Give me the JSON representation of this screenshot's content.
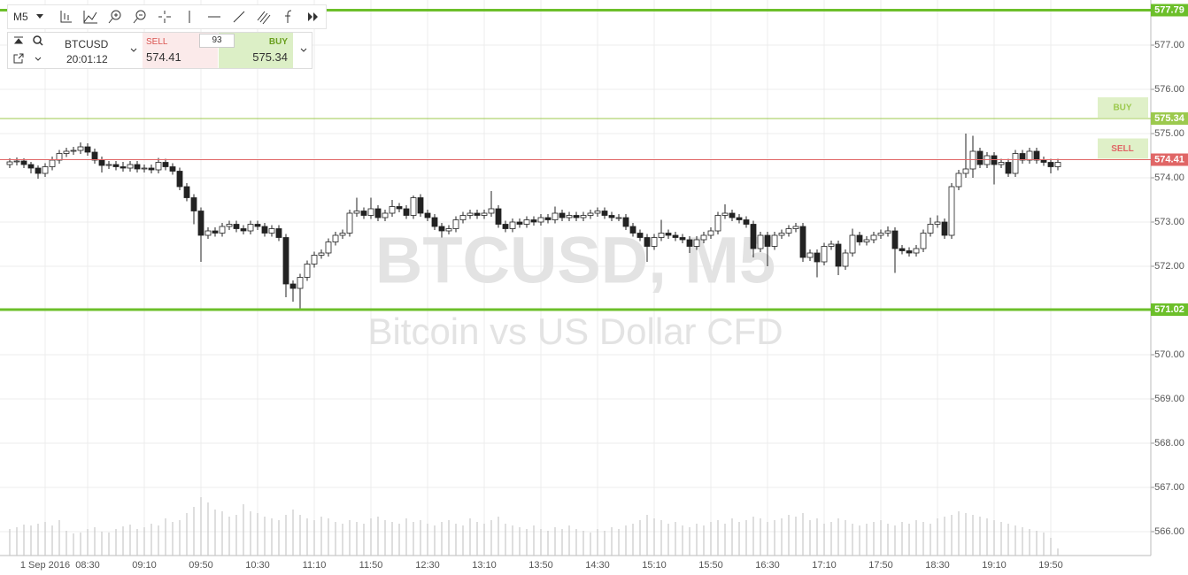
{
  "toolbar": {
    "timeframe": "M5"
  },
  "ticker": {
    "symbol": "BTCUSD",
    "time": "20:01:12",
    "sell_label": "SELL",
    "sell_price": "574.41",
    "spread": "93",
    "buy_label": "BUY",
    "buy_price": "575.34"
  },
  "chart_data": {
    "type": "candlestick",
    "watermark": "BTCUSD, M5",
    "watermark_subtitle": "Bitcoin vs US Dollar CFD",
    "x": [
      "07:35",
      "07:40",
      "07:45",
      "07:50",
      "07:55",
      "08:00",
      "08:05",
      "08:10",
      "08:15",
      "08:20",
      "08:25",
      "08:30",
      "08:35",
      "08:40",
      "08:45",
      "08:50",
      "08:55",
      "09:00",
      "09:05",
      "09:10",
      "09:15",
      "09:20",
      "09:25",
      "09:30",
      "09:35",
      "09:40",
      "09:45",
      "09:50",
      "09:55",
      "10:00",
      "10:05",
      "10:10",
      "10:15",
      "10:20",
      "10:25",
      "10:30",
      "10:35",
      "10:40",
      "10:45",
      "10:50",
      "10:55",
      "11:00",
      "11:05",
      "11:10",
      "11:15",
      "11:20",
      "11:25",
      "11:30",
      "11:35",
      "11:40",
      "11:45",
      "11:50",
      "11:55",
      "12:00",
      "12:05",
      "12:10",
      "12:15",
      "12:20",
      "12:25",
      "12:30",
      "12:35",
      "12:40",
      "12:45",
      "12:50",
      "12:55",
      "13:00",
      "13:05",
      "13:10",
      "13:15",
      "13:20",
      "13:25",
      "13:30",
      "13:35",
      "13:40",
      "13:45",
      "13:50",
      "13:55",
      "14:00",
      "14:05",
      "14:10",
      "14:15",
      "14:20",
      "14:25",
      "14:30",
      "14:35",
      "14:40",
      "14:45",
      "14:50",
      "14:55",
      "15:00",
      "15:05",
      "15:10",
      "15:15",
      "15:20",
      "15:25",
      "15:30",
      "15:35",
      "15:40",
      "15:45",
      "15:50",
      "15:55",
      "16:00",
      "16:05",
      "16:10",
      "16:15",
      "16:20",
      "16:25",
      "16:30",
      "16:35",
      "16:40",
      "16:45",
      "16:50",
      "16:55",
      "17:00",
      "17:05",
      "17:10",
      "17:15",
      "17:20",
      "17:25",
      "17:30",
      "17:35",
      "17:40",
      "17:45",
      "17:50",
      "17:55",
      "18:00",
      "18:05",
      "18:10",
      "18:15",
      "18:20",
      "18:25",
      "18:30",
      "18:35",
      "18:40",
      "18:45",
      "18:50",
      "18:55",
      "19:00",
      "19:05",
      "19:10",
      "19:15",
      "19:20",
      "19:25",
      "19:30",
      "19:35",
      "19:40",
      "19:45",
      "19:50",
      "19:55"
    ],
    "ohlc": [
      [
        574.3,
        574.44,
        574.22,
        574.36
      ],
      [
        574.36,
        574.46,
        574.28,
        574.38
      ],
      [
        574.38,
        574.44,
        574.22,
        574.3
      ],
      [
        574.3,
        574.36,
        574.1,
        574.22
      ],
      [
        574.22,
        574.28,
        573.98,
        574.1
      ],
      [
        574.1,
        574.33,
        574.02,
        574.25
      ],
      [
        574.25,
        574.48,
        574.17,
        574.4
      ],
      [
        574.4,
        574.63,
        574.32,
        574.55
      ],
      [
        574.55,
        574.68,
        574.47,
        574.6
      ],
      [
        574.6,
        574.7,
        574.52,
        574.62
      ],
      [
        574.62,
        574.8,
        574.54,
        574.7
      ],
      [
        574.7,
        574.78,
        574.5,
        574.58
      ],
      [
        574.58,
        574.66,
        574.32,
        574.4
      ],
      [
        574.4,
        574.48,
        574.12,
        574.28
      ],
      [
        574.28,
        574.38,
        574.2,
        574.3
      ],
      [
        574.3,
        574.38,
        574.17,
        574.25
      ],
      [
        574.25,
        574.36,
        574.14,
        574.22
      ],
      [
        574.22,
        574.38,
        574.14,
        574.3
      ],
      [
        574.3,
        574.38,
        574.12,
        574.2
      ],
      [
        574.2,
        574.3,
        574.12,
        574.22
      ],
      [
        574.22,
        574.3,
        574.1,
        574.18
      ],
      [
        574.18,
        574.45,
        574.1,
        574.35
      ],
      [
        574.35,
        574.43,
        574.17,
        574.25
      ],
      [
        574.25,
        574.33,
        574.07,
        574.15
      ],
      [
        574.15,
        574.23,
        573.72,
        573.8
      ],
      [
        573.8,
        573.88,
        573.47,
        573.55
      ],
      [
        573.55,
        573.63,
        572.95,
        573.25
      ],
      [
        573.25,
        573.33,
        572.1,
        572.7
      ],
      [
        572.7,
        572.88,
        572.62,
        572.8
      ],
      [
        572.8,
        572.88,
        572.67,
        572.75
      ],
      [
        572.75,
        572.98,
        572.67,
        572.9
      ],
      [
        572.9,
        573.03,
        572.82,
        572.95
      ],
      [
        572.95,
        573.03,
        572.77,
        572.85
      ],
      [
        572.85,
        572.93,
        572.72,
        572.8
      ],
      [
        572.8,
        573.03,
        572.72,
        572.95
      ],
      [
        572.95,
        573.03,
        572.82,
        572.9
      ],
      [
        572.9,
        572.98,
        572.67,
        572.75
      ],
      [
        572.75,
        572.93,
        572.67,
        572.85
      ],
      [
        572.85,
        572.93,
        572.57,
        572.65
      ],
      [
        572.65,
        572.73,
        571.3,
        571.6
      ],
      [
        571.6,
        571.68,
        571.2,
        571.5
      ],
      [
        571.5,
        571.83,
        571.02,
        571.75
      ],
      [
        571.75,
        572.13,
        571.67,
        572.05
      ],
      [
        572.05,
        572.33,
        571.97,
        572.25
      ],
      [
        572.25,
        572.38,
        572.17,
        572.3
      ],
      [
        572.3,
        572.63,
        572.22,
        572.55
      ],
      [
        572.55,
        572.78,
        572.47,
        572.7
      ],
      [
        572.7,
        572.83,
        572.62,
        572.75
      ],
      [
        572.75,
        573.28,
        572.67,
        573.2
      ],
      [
        573.2,
        573.55,
        573.12,
        573.25
      ],
      [
        573.25,
        573.33,
        573.07,
        573.15
      ],
      [
        573.15,
        573.55,
        573.07,
        573.3
      ],
      [
        573.3,
        573.38,
        573.02,
        573.1
      ],
      [
        573.1,
        573.28,
        573.02,
        573.2
      ],
      [
        573.2,
        573.5,
        573.12,
        573.35
      ],
      [
        573.35,
        573.43,
        573.22,
        573.3
      ],
      [
        573.3,
        573.38,
        573.07,
        573.15
      ],
      [
        573.15,
        573.6,
        573.07,
        573.55
      ],
      [
        573.55,
        573.63,
        573.12,
        573.2
      ],
      [
        573.2,
        573.28,
        573.02,
        573.1
      ],
      [
        573.1,
        573.18,
        572.82,
        572.9
      ],
      [
        572.9,
        572.98,
        572.65,
        572.8
      ],
      [
        572.8,
        572.93,
        572.72,
        572.85
      ],
      [
        572.85,
        573.13,
        572.77,
        573.05
      ],
      [
        573.05,
        573.23,
        572.97,
        573.15
      ],
      [
        573.15,
        573.28,
        573.07,
        573.2
      ],
      [
        573.2,
        573.28,
        573.07,
        573.15
      ],
      [
        573.15,
        573.28,
        573.07,
        573.2
      ],
      [
        573.2,
        573.7,
        573.12,
        573.3
      ],
      [
        573.3,
        573.38,
        572.87,
        572.95
      ],
      [
        572.95,
        573.03,
        572.77,
        572.85
      ],
      [
        572.85,
        573.08,
        572.77,
        573.0
      ],
      [
        573.0,
        573.08,
        572.87,
        572.95
      ],
      [
        572.95,
        573.13,
        572.87,
        573.05
      ],
      [
        573.05,
        573.13,
        572.92,
        573.0
      ],
      [
        573.0,
        573.18,
        572.92,
        573.1
      ],
      [
        573.1,
        573.18,
        572.97,
        573.05
      ],
      [
        573.05,
        573.35,
        572.97,
        573.2
      ],
      [
        573.2,
        573.28,
        573.02,
        573.1
      ],
      [
        573.1,
        573.23,
        573.02,
        573.15
      ],
      [
        573.15,
        573.23,
        573.02,
        573.1
      ],
      [
        573.1,
        573.23,
        573.02,
        573.15
      ],
      [
        573.15,
        573.28,
        573.07,
        573.2
      ],
      [
        573.2,
        573.33,
        573.12,
        573.25
      ],
      [
        573.25,
        573.33,
        573.07,
        573.15
      ],
      [
        573.15,
        573.23,
        573.02,
        573.1
      ],
      [
        573.1,
        573.18,
        573.02,
        573.1
      ],
      [
        573.1,
        573.18,
        572.82,
        572.9
      ],
      [
        572.9,
        572.98,
        572.67,
        572.75
      ],
      [
        572.75,
        572.83,
        572.57,
        572.65
      ],
      [
        572.65,
        572.73,
        572.1,
        572.45
      ],
      [
        572.45,
        572.73,
        572.37,
        572.65
      ],
      [
        572.65,
        573.05,
        572.57,
        572.75
      ],
      [
        572.75,
        572.83,
        572.62,
        572.7
      ],
      [
        572.7,
        572.78,
        572.57,
        572.65
      ],
      [
        572.65,
        572.73,
        572.52,
        572.6
      ],
      [
        572.6,
        572.68,
        572.3,
        572.45
      ],
      [
        572.45,
        572.68,
        572.37,
        572.6
      ],
      [
        572.6,
        572.78,
        572.52,
        572.7
      ],
      [
        572.7,
        572.88,
        572.62,
        572.8
      ],
      [
        572.8,
        573.23,
        572.72,
        573.15
      ],
      [
        573.15,
        573.4,
        573.07,
        573.2
      ],
      [
        573.2,
        573.28,
        573.02,
        573.1
      ],
      [
        573.1,
        573.18,
        572.97,
        573.05
      ],
      [
        573.05,
        573.13,
        572.87,
        572.95
      ],
      [
        572.95,
        573.03,
        572.2,
        572.4
      ],
      [
        572.4,
        572.78,
        572.32,
        572.7
      ],
      [
        572.7,
        572.78,
        572.0,
        572.45
      ],
      [
        572.45,
        572.78,
        572.37,
        572.7
      ],
      [
        572.7,
        572.83,
        572.62,
        572.75
      ],
      [
        572.75,
        572.93,
        572.67,
        572.85
      ],
      [
        572.85,
        572.98,
        572.77,
        572.9
      ],
      [
        572.9,
        572.98,
        572.1,
        572.2
      ],
      [
        572.2,
        572.38,
        572.12,
        572.3
      ],
      [
        572.3,
        572.38,
        571.75,
        572.1
      ],
      [
        572.1,
        572.53,
        572.02,
        572.45
      ],
      [
        572.45,
        572.58,
        572.37,
        572.5
      ],
      [
        572.5,
        572.58,
        571.8,
        572.0
      ],
      [
        572.0,
        572.38,
        571.92,
        572.3
      ],
      [
        572.3,
        572.85,
        572.22,
        572.7
      ],
      [
        572.7,
        572.78,
        572.47,
        572.55
      ],
      [
        572.55,
        572.68,
        572.47,
        572.6
      ],
      [
        572.6,
        572.78,
        572.52,
        572.7
      ],
      [
        572.7,
        572.83,
        572.62,
        572.75
      ],
      [
        572.75,
        572.9,
        572.67,
        572.8
      ],
      [
        572.8,
        572.88,
        571.85,
        572.4
      ],
      [
        572.4,
        572.48,
        572.27,
        572.35
      ],
      [
        572.35,
        572.43,
        572.22,
        572.3
      ],
      [
        572.3,
        572.48,
        572.22,
        572.4
      ],
      [
        572.4,
        572.83,
        572.32,
        572.75
      ],
      [
        572.75,
        573.1,
        572.67,
        572.95
      ],
      [
        572.95,
        573.15,
        572.87,
        573.0
      ],
      [
        573.0,
        573.08,
        572.62,
        572.7
      ],
      [
        572.7,
        573.88,
        572.62,
        573.8
      ],
      [
        573.8,
        574.18,
        573.72,
        574.1
      ],
      [
        574.1,
        575.0,
        574.0,
        574.2
      ],
      [
        574.2,
        574.95,
        574.0,
        574.6
      ],
      [
        574.6,
        574.68,
        574.22,
        574.3
      ],
      [
        574.3,
        574.58,
        574.22,
        574.5
      ],
      [
        574.5,
        574.58,
        573.85,
        574.3
      ],
      [
        574.3,
        574.43,
        574.22,
        574.35
      ],
      [
        574.35,
        574.43,
        574.02,
        574.1
      ],
      [
        574.1,
        574.63,
        574.02,
        574.55
      ],
      [
        574.55,
        574.63,
        574.32,
        574.4
      ],
      [
        574.4,
        574.68,
        574.32,
        574.6
      ],
      [
        574.6,
        574.68,
        574.32,
        574.4
      ],
      [
        574.4,
        574.48,
        574.27,
        574.35
      ],
      [
        574.35,
        574.43,
        574.1,
        574.25
      ],
      [
        574.25,
        574.43,
        574.17,
        574.35
      ]
    ],
    "volume": [
      30,
      32,
      35,
      34,
      36,
      38,
      34,
      40,
      28,
      25,
      26,
      30,
      32,
      27,
      26,
      30,
      33,
      35,
      30,
      32,
      36,
      34,
      42,
      38,
      40,
      48,
      55,
      66,
      60,
      52,
      50,
      44,
      46,
      58,
      50,
      48,
      44,
      42,
      40,
      46,
      52,
      46,
      42,
      40,
      44,
      42,
      38,
      36,
      40,
      38,
      36,
      42,
      44,
      40,
      38,
      36,
      42,
      38,
      40,
      36,
      34,
      38,
      40,
      36,
      34,
      42,
      38,
      36,
      40,
      44,
      36,
      34,
      32,
      30,
      34,
      30,
      28,
      32,
      30,
      34,
      30,
      28,
      26,
      30,
      28,
      32,
      30,
      34,
      36,
      40,
      46,
      42,
      40,
      36,
      38,
      34,
      32,
      36,
      34,
      38,
      40,
      36,
      42,
      38,
      40,
      44,
      42,
      38,
      40,
      42,
      46,
      44,
      48,
      40,
      42,
      36,
      38,
      42,
      40,
      36,
      34,
      36,
      38,
      40,
      36,
      34,
      38,
      36,
      40,
      38,
      36,
      42,
      44,
      46,
      50,
      48,
      46,
      44,
      42,
      40,
      38,
      36,
      34,
      32,
      30,
      28,
      26,
      20,
      8
    ],
    "ylim": [
      565.46,
      578.02
    ],
    "yticks": [
      {
        "value": 566,
        "label": "566.00"
      },
      {
        "value": 567,
        "label": "567.00"
      },
      {
        "value": 568,
        "label": "568.00"
      },
      {
        "value": 569,
        "label": "569.00"
      },
      {
        "value": 570,
        "label": "570.00"
      },
      {
        "value": 571,
        "label": "571.00"
      },
      {
        "value": 572,
        "label": "572.00"
      },
      {
        "value": 573,
        "label": "573.00"
      },
      {
        "value": 574,
        "label": "574.00"
      },
      {
        "value": 575,
        "label": "575.00"
      },
      {
        "value": 576,
        "label": "576.00"
      },
      {
        "value": 577,
        "label": "577.00"
      }
    ],
    "xticks": [
      {
        "value": "08:00",
        "label": "1 Sep 2016"
      },
      "08:30",
      "09:10",
      "09:50",
      "10:30",
      "11:10",
      "11:50",
      "12:30",
      "13:10",
      "13:50",
      "14:30",
      "15:10",
      "15:50",
      "16:30",
      "17:10",
      "17:50",
      "18:30",
      "19:10",
      "19:50"
    ],
    "grid": true,
    "up_color": "#ffffff",
    "down_color": "#222222",
    "levels": [
      {
        "value": 577.79,
        "color": "#6cbf2a"
      },
      {
        "name": "BUY",
        "value": 575.34,
        "color": "#9cc94e"
      },
      {
        "name": "SELL",
        "value": 574.41,
        "color": "#e06666"
      },
      {
        "value": 571.02,
        "color": "#6cbf2a"
      }
    ]
  }
}
